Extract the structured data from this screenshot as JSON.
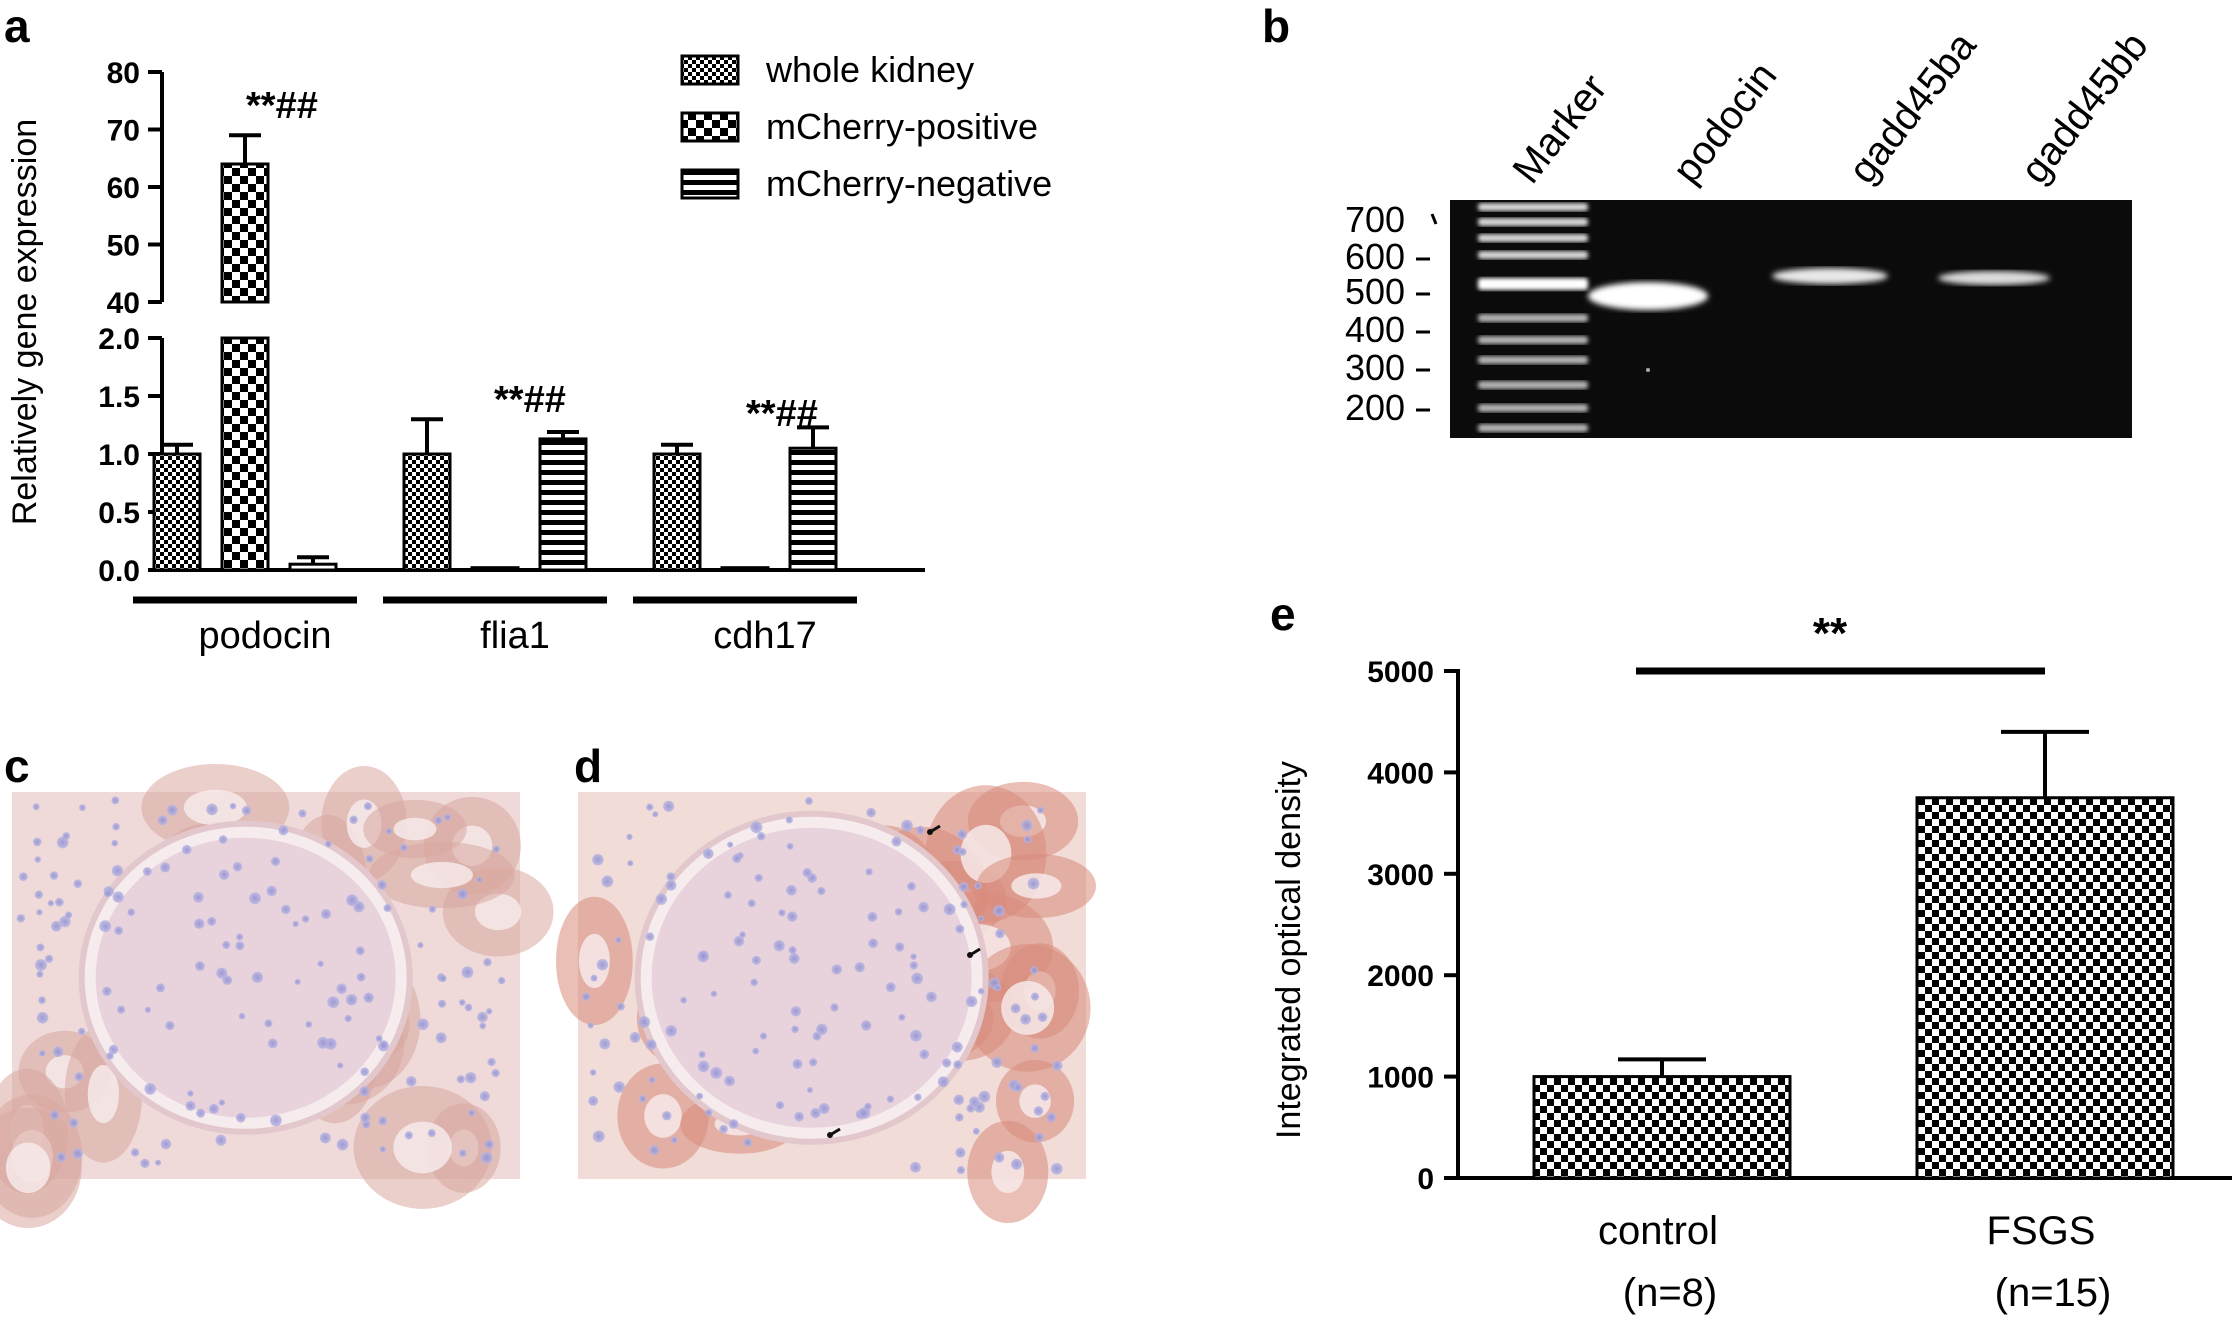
{
  "panels": {
    "a": "a",
    "b": "b",
    "c": "c",
    "d": "d",
    "e": "e"
  },
  "chart_data": [
    {
      "id": "a",
      "type": "bar",
      "ylabel": "Relatively gene expression",
      "broken_axis": true,
      "ylim_lower": [
        0,
        2.0
      ],
      "ylim_upper": [
        40,
        80
      ],
      "yticks_lower": [
        "0.0",
        "0.5",
        "1.0",
        "1.5",
        "2.0"
      ],
      "yticks_upper": [
        "40",
        "50",
        "60",
        "70",
        "80"
      ],
      "categories": [
        "podocin",
        "flia1",
        "cdh17"
      ],
      "series": [
        {
          "name": "whole kidney",
          "pattern": "small-check",
          "values": [
            1.0,
            1.0,
            1.0
          ],
          "errors": [
            0.08,
            0.3,
            0.08
          ]
        },
        {
          "name": "mCherry-positive",
          "pattern": "large-check",
          "values": [
            64,
            0.02,
            0.02
          ],
          "errors": [
            5,
            0,
            0
          ]
        },
        {
          "name": "mCherry-negative",
          "pattern": "hstripe",
          "values": [
            0.05,
            1.13,
            1.05
          ],
          "errors": [
            0.06,
            0.06,
            0.18
          ]
        }
      ],
      "annotations": [
        "**##",
        "**##",
        "**##"
      ],
      "legend_position": "top-right"
    },
    {
      "id": "b",
      "type": "gel",
      "lanes": [
        "Marker",
        "podocin",
        "gadd45ba",
        "gadd45bb"
      ],
      "size_labels": [
        "700",
        "600",
        "500",
        "400",
        "300",
        "200"
      ]
    },
    {
      "id": "e",
      "type": "bar",
      "ylabel": "Integrated optical density",
      "ylim": [
        0,
        5000
      ],
      "yticks": [
        "0",
        "1000",
        "2000",
        "3000",
        "4000",
        "5000"
      ],
      "categories": [
        "control",
        "FSGS"
      ],
      "category_sub": [
        "(n=8)",
        "(n=15)"
      ],
      "values": [
        1000,
        3750
      ],
      "errors": [
        170,
        650
      ],
      "significance": "**"
    }
  ],
  "colors": {
    "stroke": "#000000",
    "gel_bg": "#0a0a0a",
    "tissue": "#f0dada"
  }
}
